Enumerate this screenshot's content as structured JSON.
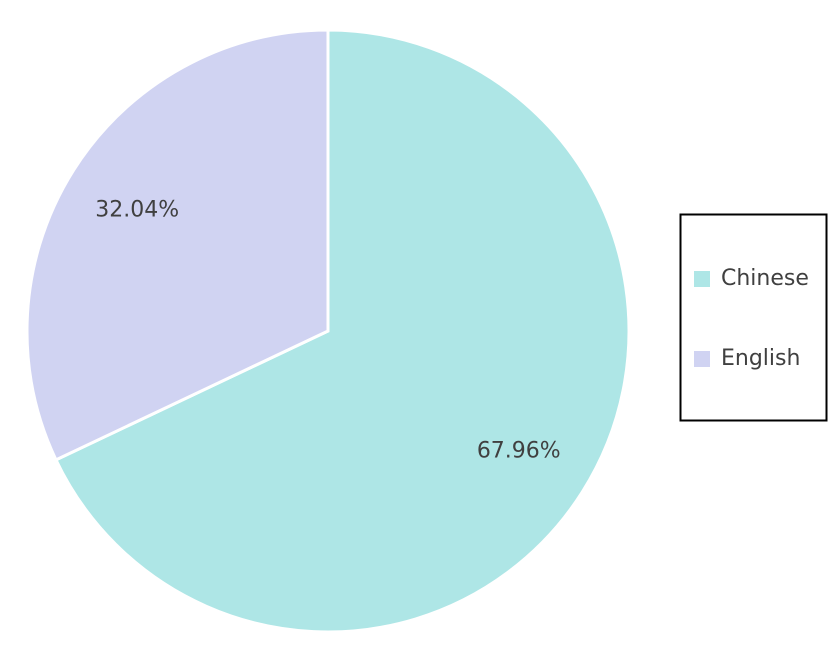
{
  "chart_data": {
    "type": "pie",
    "categories": [
      "Chinese",
      "English"
    ],
    "values": [
      67.96,
      32.04
    ],
    "value_labels": [
      "67.96%",
      "32.04%"
    ],
    "colors": [
      "#aee6e6",
      "#d0d3f2"
    ],
    "legend": "right"
  }
}
